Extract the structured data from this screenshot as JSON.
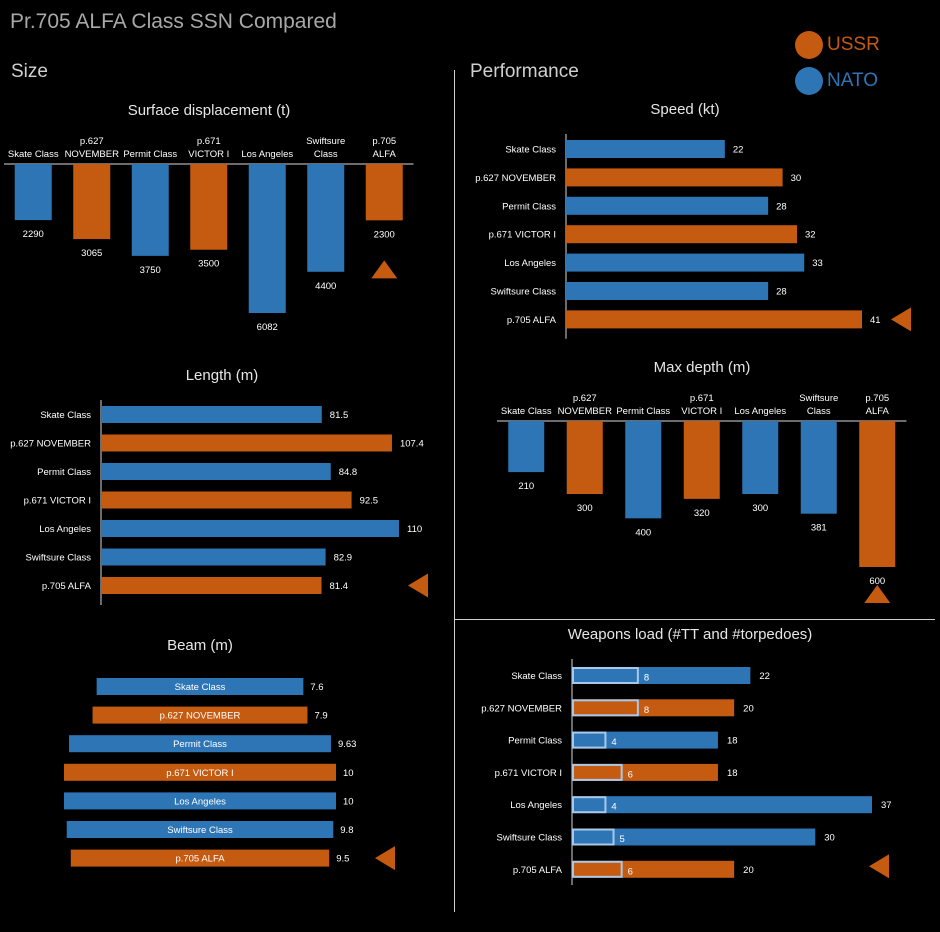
{
  "title": "Pr.705 ALFA Class SSN Compared",
  "sections": {
    "size": "Size",
    "performance": "Performance"
  },
  "legend": [
    {
      "label": "USSR",
      "color": "#c55a11"
    },
    {
      "label": "NATO",
      "color": "#2e75b6"
    }
  ],
  "colors": {
    "ussr": "#c55a11",
    "nato": "#2e75b6",
    "outline": "#a9c8e8"
  },
  "chart_data": [
    {
      "id": "displacement",
      "type": "bar",
      "orientation": "vertical-down",
      "title": "Surface displacement (t)",
      "categories": [
        "Skate Class",
        "p.627 NOVEMBER",
        "Permit Class",
        "p.671 VICTOR I",
        "Los Angeles",
        "Swiftsure Class",
        "p.705 ALFA"
      ],
      "sides": [
        "NATO",
        "USSR",
        "NATO",
        "USSR",
        "NATO",
        "NATO",
        "USSR"
      ],
      "values": [
        2290,
        3065,
        3750,
        3500,
        6082,
        4400,
        2300
      ],
      "ylim": [
        0,
        6082
      ]
    },
    {
      "id": "length",
      "type": "bar",
      "orientation": "horizontal",
      "title": "Length (m)",
      "categories": [
        "Skate Class",
        "p.627 NOVEMBER",
        "Permit Class",
        "p.671 VICTOR I",
        "Los Angeles",
        "Swiftsure Class",
        "p.705 ALFA"
      ],
      "sides": [
        "NATO",
        "USSR",
        "NATO",
        "USSR",
        "NATO",
        "NATO",
        "USSR"
      ],
      "values": [
        81.5,
        107.4,
        84.8,
        92.5,
        110,
        82.9,
        81.4
      ],
      "xlim": [
        0,
        110
      ]
    },
    {
      "id": "beam",
      "type": "bar",
      "orientation": "horizontal-centered",
      "title": "Beam (m)",
      "categories": [
        "Skate Class",
        "p.627 NOVEMBER",
        "Permit Class",
        "p.671 VICTOR I",
        "Los Angeles",
        "Swiftsure Class",
        "p.705 ALFA"
      ],
      "sides": [
        "NATO",
        "USSR",
        "NATO",
        "USSR",
        "NATO",
        "NATO",
        "USSR"
      ],
      "values": [
        7.6,
        7.9,
        9.63,
        10,
        10,
        9.8,
        9.5
      ],
      "xlim": [
        0,
        10
      ]
    },
    {
      "id": "speed",
      "type": "bar",
      "orientation": "horizontal",
      "title": "Speed (kt)",
      "categories": [
        "Skate Class",
        "p.627 NOVEMBER",
        "Permit Class",
        "p.671 VICTOR I",
        "Los Angeles",
        "Swiftsure Class",
        "p.705 ALFA"
      ],
      "sides": [
        "NATO",
        "USSR",
        "NATO",
        "USSR",
        "NATO",
        "NATO",
        "USSR"
      ],
      "values": [
        22,
        30,
        28,
        32,
        33,
        28,
        41
      ],
      "xlim": [
        0,
        41
      ]
    },
    {
      "id": "depth",
      "type": "bar",
      "orientation": "vertical-down",
      "title": "Max  depth (m)",
      "categories": [
        "Skate Class",
        "p.627 NOVEMBER",
        "Permit Class",
        "p.671 VICTOR I",
        "Los Angeles",
        "Swiftsure Class",
        "p.705 ALFA"
      ],
      "sides": [
        "NATO",
        "USSR",
        "NATO",
        "USSR",
        "NATO",
        "NATO",
        "USSR"
      ],
      "values": [
        210,
        300,
        400,
        320,
        300,
        381,
        600
      ],
      "ylim": [
        0,
        600
      ]
    },
    {
      "id": "weapons",
      "type": "bar",
      "orientation": "horizontal-overlay",
      "title": "Weapons load (#TT and #torpedoes)",
      "categories": [
        "Skate Class",
        "p.627 NOVEMBER",
        "Permit Class",
        "p.671 VICTOR I",
        "Los Angeles",
        "Swiftsure Class",
        "p.705 ALFA"
      ],
      "sides": [
        "NATO",
        "USSR",
        "NATO",
        "USSR",
        "NATO",
        "NATO",
        "USSR"
      ],
      "series": [
        {
          "name": "#torpedoes",
          "values": [
            22,
            20,
            18,
            18,
            37,
            30,
            20
          ]
        },
        {
          "name": "#TT",
          "values": [
            8,
            8,
            4,
            6,
            4,
            5,
            6
          ]
        }
      ],
      "xlim": [
        0,
        37
      ]
    }
  ]
}
